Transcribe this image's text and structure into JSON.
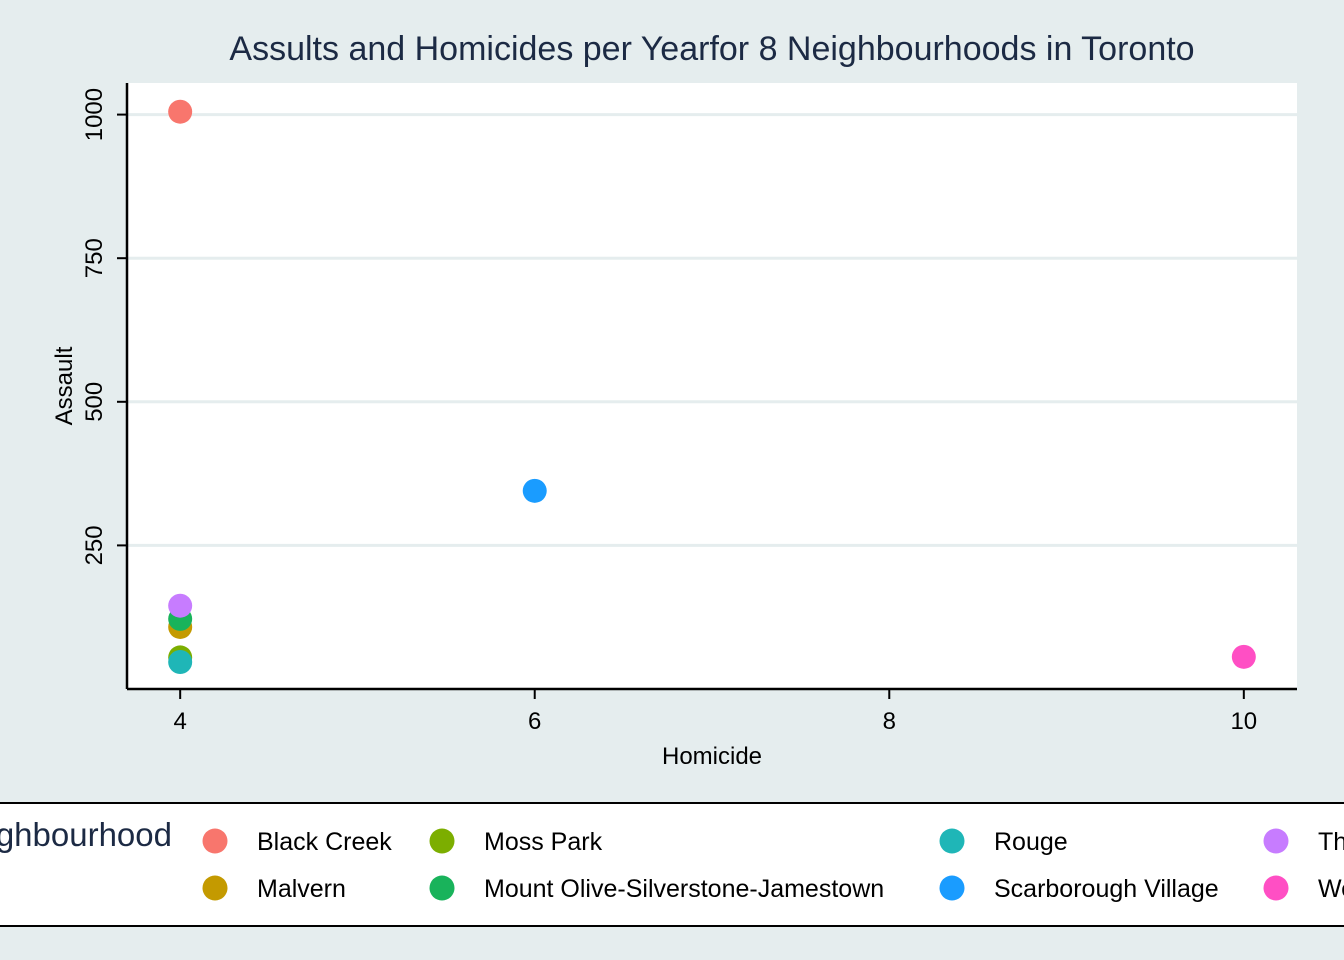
{
  "chart_data": {
    "type": "scatter",
    "title": "Assults and Homicides per Yearfor 8 Neighbourhoods in Toronto",
    "xlabel": "Homicide",
    "ylabel": "Assault",
    "xlim": [
      3.7,
      10.3
    ],
    "ylim": [
      0,
      1055
    ],
    "xticks": [
      4,
      6,
      8,
      10
    ],
    "yticks": [
      250,
      500,
      750,
      1000
    ],
    "grid": true,
    "legend_title": "Neighbourhood",
    "legend_placement": "bottom",
    "series": [
      {
        "name": "Black Creek",
        "color": "#f8766d",
        "points": [
          {
            "x": 4,
            "y": 1005
          }
        ]
      },
      {
        "name": "Malvern",
        "color": "#c49a00",
        "points": [
          {
            "x": 4,
            "y": 108
          }
        ]
      },
      {
        "name": "Moss Park",
        "color": "#7cae00",
        "points": [
          {
            "x": 4,
            "y": 55
          }
        ]
      },
      {
        "name": "Mount Olive-Silverstone-Jamestown",
        "color": "#19b35b",
        "points": [
          {
            "x": 4,
            "y": 122
          }
        ]
      },
      {
        "name": "Rouge",
        "color": "#1fb6b7",
        "points": [
          {
            "x": 4,
            "y": 47
          }
        ]
      },
      {
        "name": "Scarborough Village",
        "color": "#1a9cff",
        "points": [
          {
            "x": 6,
            "y": 345
          }
        ]
      },
      {
        "name": "The Elms-Junction Area",
        "color": "#c77cff",
        "points": [
          {
            "x": 4,
            "y": 145
          }
        ]
      },
      {
        "name": "Weston",
        "color": "#ff4fc4",
        "points": [
          {
            "x": 10,
            "y": 56
          }
        ]
      }
    ]
  }
}
